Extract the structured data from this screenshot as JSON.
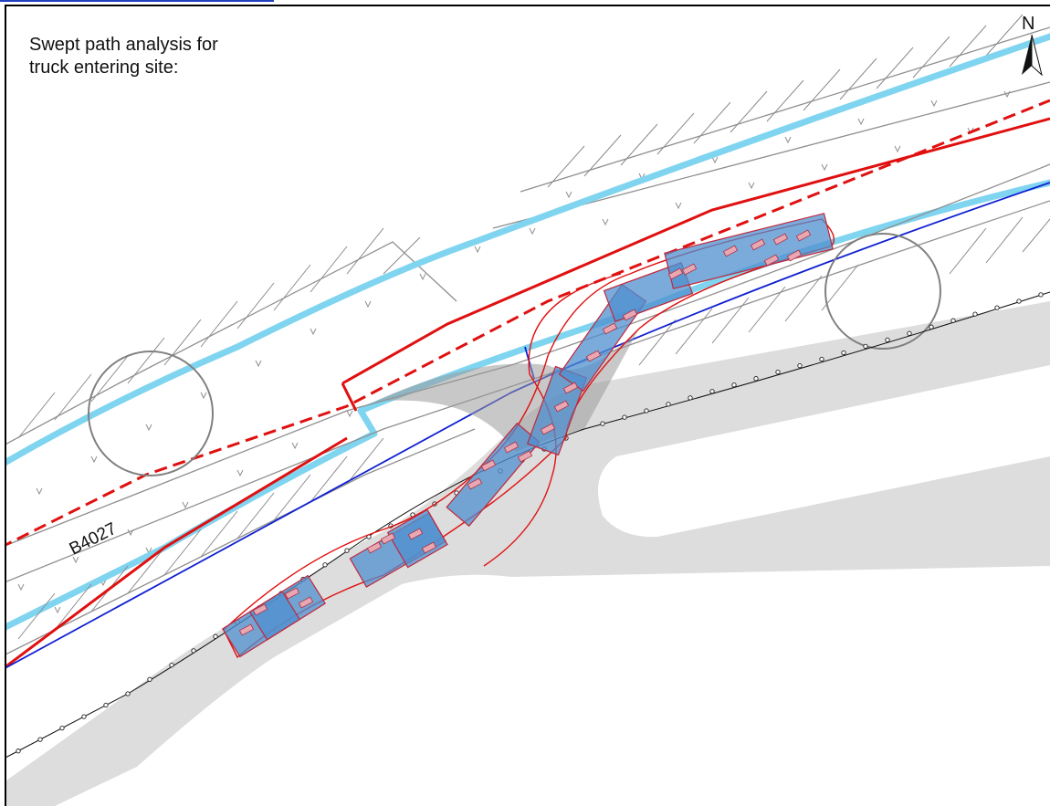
{
  "title_lines": [
    "Swept path analysis for",
    "truck entering site:"
  ],
  "road_label": "B4027",
  "north_label": "N",
  "icons": [
    "north-arrow-icon"
  ],
  "colors": {
    "kerb_line": "#7fd4ef",
    "boundary_red": "#e01010",
    "visibility_blue": "#1020d0",
    "vehicle_fill": "#4f8fcf",
    "swept_envelope": "#e01010",
    "access_surface": "#dddddd"
  }
}
